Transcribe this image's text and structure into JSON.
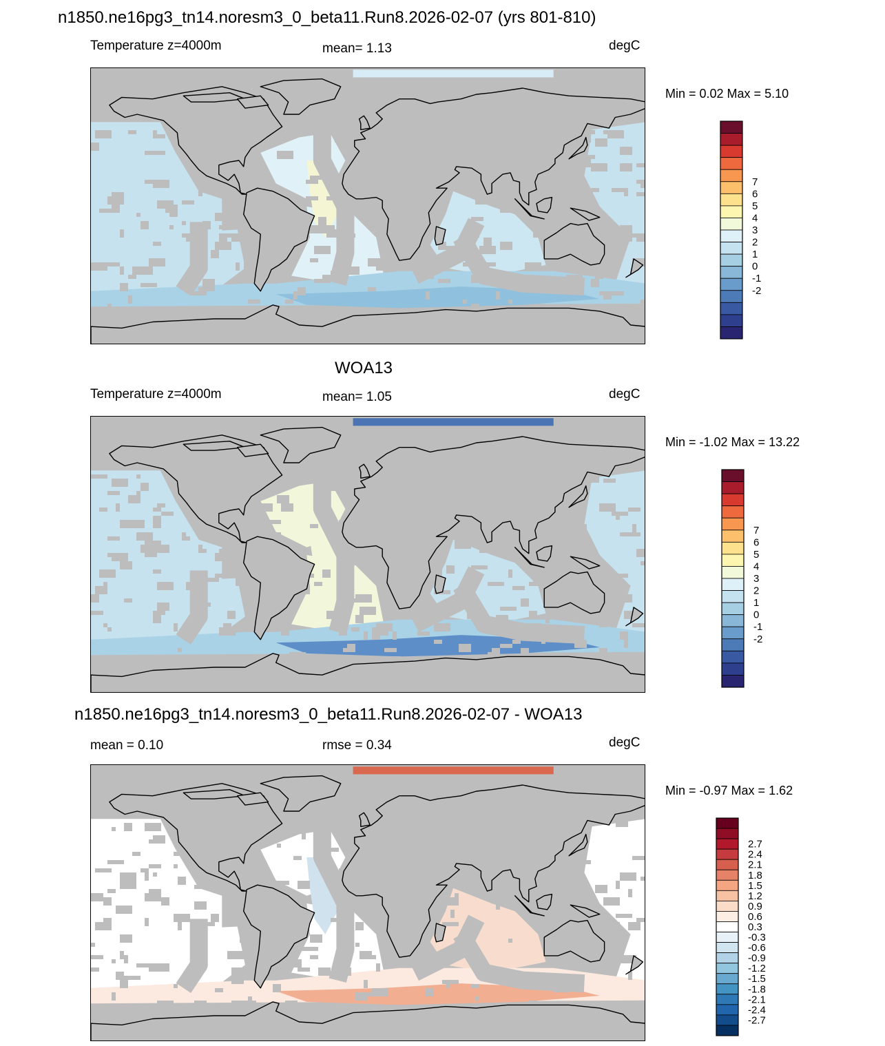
{
  "figure": {
    "main_title": "n1850.ne16pg3_tn14.noresm3_0_beta11.Run8.2026-02-07 (yrs 801-810)"
  },
  "panels": [
    {
      "id": "model",
      "heading": "",
      "left_label": "Temperature z=4000m",
      "center_label": "mean=   1.13",
      "units": "degC",
      "minmax": "Min =   0.02 Max =   5.10",
      "palette": "temperature",
      "fields": {
        "pacific": "#c6e2ef",
        "atlantic": "#e0f1f8",
        "indian": "#cce6f2",
        "southern": "#a9d2e7",
        "antarctic": "#8fc0dd",
        "arctic": "#d7ecf6",
        "warm": "#f4f5d2"
      }
    },
    {
      "id": "obs",
      "heading": "WOA13",
      "left_label": "Temperature z=4000m",
      "center_label": "mean=   1.05",
      "units": "degC",
      "minmax": "Min =  -1.02 Max =  13.22",
      "palette": "temperature",
      "fields": {
        "pacific": "#c6e2ef",
        "atlantic": "#f2f7dc",
        "indian": "#c6e2ef",
        "southern": "#a9d2e7",
        "antarctic": "#5d8ec8",
        "arctic": "#4a74b4",
        "warm": "#f2f7dc"
      }
    },
    {
      "id": "diff",
      "heading": "n1850.ne16pg3_tn14.noresm3_0_beta11.Run8.2026-02-07 - WOA13",
      "left_label": "mean =   0.10",
      "center_label": "rmse =   0.34",
      "units": "degC",
      "minmax": "Min =  -0.97 Max =   1.62",
      "palette": "difference",
      "fields": {
        "pacific": "#ffffff",
        "atlantic": "#ffffff",
        "indian": "#f8dccd",
        "southern": "#fce9df",
        "antarctic": "#f2ae91",
        "arctic": "#d9684e",
        "warm": "#cfe2ee"
      }
    }
  ],
  "colorbars": {
    "temperature": {
      "labels": [
        "7",
        "6",
        "5",
        "4",
        "3",
        "2",
        "1",
        "0",
        "-1",
        "-2"
      ],
      "colors": [
        "#6a0f2b",
        "#a81c2c",
        "#d93a2f",
        "#ee6a3e",
        "#f8974f",
        "#fcc06c",
        "#fde18c",
        "#fdf6b0",
        "#f2f9da",
        "#def1f8",
        "#c4e2ef",
        "#a7cfe4",
        "#88b7d8",
        "#6a9ccb",
        "#4d7bb8",
        "#3a59a3",
        "#2d3f8d",
        "#2a2570"
      ]
    },
    "difference": {
      "labels": [
        "2.7",
        "2.4",
        "2.1",
        "1.8",
        "1.5",
        "1.2",
        "0.9",
        "0.6",
        "0.3",
        "-0.3",
        "-0.6",
        "-0.9",
        "-1.2",
        "-1.5",
        "-1.8",
        "-2.1",
        "-2.4",
        "-2.7"
      ],
      "colors": [
        "#67001f",
        "#900d26",
        "#b2182b",
        "#c63b3d",
        "#d6604d",
        "#e58268",
        "#f4a582",
        "#f7c1a4",
        "#fbdcc8",
        "#fdeee4",
        "#ffffff",
        "#e8f1f7",
        "#d1e5f0",
        "#b2d3e7",
        "#92c5de",
        "#6aa9cf",
        "#4393c3",
        "#2d78b5",
        "#2166ac",
        "#124c8a",
        "#053061"
      ]
    }
  }
}
